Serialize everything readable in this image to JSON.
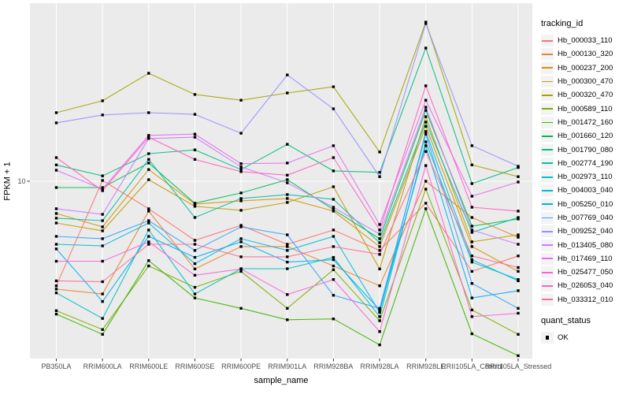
{
  "legend": {
    "tracking_title": "tracking_id",
    "quant_title": "quant_status",
    "quant_ok_label": "OK"
  },
  "colors": {
    "panel_bg": "#EBEBEB",
    "grid": "#FFFFFF",
    "axis_text": "#4D4D4D",
    "tick_mark": "#333333",
    "marker": "#000000",
    "legend_key_bg": "#F3F3F3"
  },
  "chart_data": {
    "type": "line",
    "title": "",
    "xlabel": "sample_name",
    "ylabel": "FPKM + 1",
    "x_scale": "categorical",
    "y_scale": "log10",
    "ylim": [
      1.05,
      95
    ],
    "y_ticks": [
      {
        "value": 10,
        "label": "10"
      }
    ],
    "grid": "ggplot-default",
    "legend_position": "right",
    "marker": "black-square",
    "categories": [
      "PB350LA",
      "RRIM600LA",
      "RRIM600LE",
      "RRIM600SE",
      "RRIM600PE",
      "RRIM901LA",
      "RRIM928BA",
      "RRIM928LA",
      "RRIM928LE",
      "RRII105LA_Control",
      "RRII105LA_Stressed"
    ],
    "series": [
      {
        "name": "Hb_000033_110",
        "color": "#F8766D",
        "values": [
          2.65,
          10.1,
          7.05,
          4.72,
          5.71,
          4.49,
          5.38,
          4.15,
          7.56,
          3.18,
          3.87
        ]
      },
      {
        "name": "Hb_000130_320",
        "color": "#EA8331",
        "values": [
          2.54,
          2.39,
          6.84,
          3.28,
          4.36,
          4.36,
          3.41,
          2.65,
          10.0,
          6.31,
          4.91
        ]
      },
      {
        "name": "Hb_000237_200",
        "color": "#D89000",
        "values": [
          6.64,
          5.6,
          11.6,
          7.49,
          7.79,
          8.03,
          6.84,
          4.36,
          20.1,
          4.36,
          3.18
        ]
      },
      {
        "name": "Hb_000300_470",
        "color": "#C09B00",
        "values": [
          5.88,
          5.33,
          10.2,
          7.27,
          6.91,
          7.64,
          9.32,
          3.28,
          22.7,
          4.63,
          5.06
        ]
      },
      {
        "name": "Hb_000320_470",
        "color": "#A3A500",
        "values": [
          23.9,
          27.8,
          39.4,
          30.1,
          28.0,
          30.7,
          33.2,
          14.5,
          75.5,
          12.3,
          10.6
        ]
      },
      {
        "name": "Hb_000589_110",
        "color": "#7CAE00",
        "values": [
          1.93,
          1.52,
          3.41,
          2.6,
          3.18,
          1.99,
          3.25,
          1.7,
          9.05,
          1.95,
          1.43
        ]
      },
      {
        "name": "Hb_001472_160",
        "color": "#39B600",
        "values": [
          1.85,
          1.43,
          3.65,
          2.27,
          1.99,
          1.72,
          1.74,
          1.25,
          7.05,
          1.44,
          1.09
        ]
      },
      {
        "name": "Hb_001660_120",
        "color": "#00BB4E",
        "values": [
          9.23,
          9.23,
          12.6,
          7.56,
          8.61,
          10.2,
          6.98,
          4.82,
          24.6,
          5.65,
          6.19
        ]
      },
      {
        "name": "Hb_001790_080",
        "color": "#00BF7D",
        "values": [
          12.3,
          10.7,
          14.2,
          14.9,
          11.6,
          16.0,
          11.4,
          11.2,
          54.3,
          9.7,
          11.9
        ]
      },
      {
        "name": "Hb_002774_190",
        "color": "#00C1A3",
        "values": [
          6.25,
          6.06,
          13.2,
          6.31,
          8.03,
          8.44,
          7.95,
          4.58,
          21.2,
          5.22,
          6.31
        ]
      },
      {
        "name": "Hb_002973_110",
        "color": "#00BFC4",
        "values": [
          2.42,
          1.75,
          5.38,
          2.39,
          3.29,
          3.29,
          3.8,
          1.79,
          16.5,
          3.58,
          2.87
        ]
      },
      {
        "name": "Hb_004003_040",
        "color": "#00BAE0",
        "values": [
          4.49,
          4.4,
          5.88,
          3.51,
          4.82,
          4.15,
          4.96,
          1.89,
          18.8,
          3.69,
          2.82
        ]
      },
      {
        "name": "Hb_005250_010",
        "color": "#00B0F6",
        "values": [
          4.23,
          2.17,
          4.96,
          3.8,
          4.63,
          3.58,
          3.69,
          1.95,
          15.7,
          2.27,
          2.49
        ]
      },
      {
        "name": "Hb_007769_040",
        "color": "#35A2FF",
        "values": [
          4.96,
          4.82,
          6.06,
          4.15,
          5.6,
          5.06,
          2.35,
          1.99,
          18.2,
          2.73,
          1.99
        ]
      },
      {
        "name": "Hb_009252_040",
        "color": "#9590FF",
        "values": [
          21.0,
          23.2,
          23.9,
          23.4,
          18.4,
          38.6,
          25.1,
          10.6,
          74.1,
          15.7,
          12.1
        ]
      },
      {
        "name": "Hb_013405_080",
        "color": "#C77CFF",
        "values": [
          7.05,
          6.57,
          17.2,
          17.5,
          12.0,
          9.8,
          7.19,
          5.11,
          25.6,
          5.38,
          4.49
        ]
      },
      {
        "name": "Hb_017469_110",
        "color": "#E76BF3",
        "values": [
          11.5,
          9.05,
          17.9,
          18.2,
          12.5,
          12.6,
          15.7,
          5.77,
          28.0,
          8.27,
          9.9
        ]
      },
      {
        "name": "Hb_025477_050",
        "color": "#FA62DB",
        "values": [
          3.62,
          3.62,
          4.63,
          3.03,
          3.28,
          2.37,
          2.87,
          1.48,
          12.2,
          1.79,
          1.87
        ]
      },
      {
        "name": "Hb_026053_040",
        "color": "#FF62BC",
        "values": [
          13.5,
          8.87,
          17.5,
          13.2,
          11.3,
          10.8,
          13.5,
          5.38,
          33.6,
          7.19,
          6.84
        ]
      },
      {
        "name": "Hb_033312_010",
        "color": "#FF6A98",
        "values": [
          2.82,
          2.79,
          4.49,
          4.49,
          3.83,
          3.83,
          4.36,
          3.95,
          14.6,
          3.87,
          3.34
        ]
      }
    ]
  }
}
